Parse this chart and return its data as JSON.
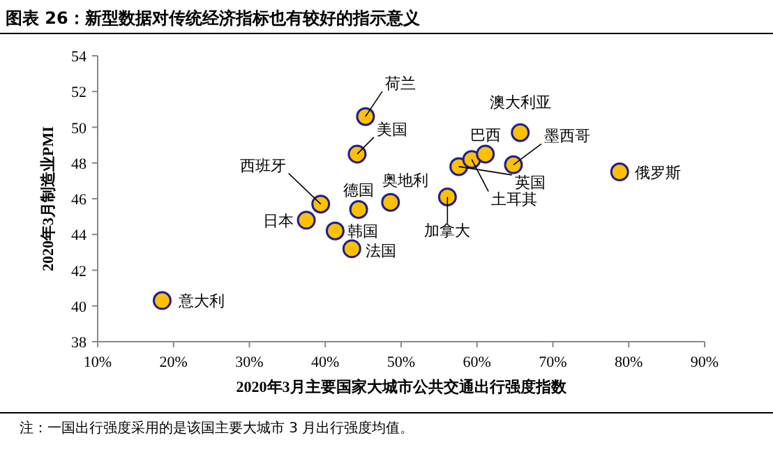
{
  "chart_data": {
    "type": "scatter",
    "title": "图表 26：新型数据对传统经济指标也有较好的指示意义",
    "xlabel": "2020年3月主要国家大城市公共交通出行强度指数",
    "ylabel": "2020年3月制造业PMI",
    "x": [
      18.5,
      45.3,
      44.2,
      39.4,
      37.5,
      41.3,
      44.4,
      43.5,
      48.6,
      56.1,
      57.6,
      59.3,
      61.1,
      64.8,
      65.7,
      78.8
    ],
    "values": [
      40.3,
      50.6,
      48.5,
      45.7,
      44.8,
      44.2,
      45.4,
      43.2,
      45.8,
      46.1,
      47.8,
      48.2,
      48.5,
      47.9,
      49.7,
      47.5
    ],
    "color": "#ffc000",
    "marker": "circle",
    "xlim": [
      10,
      90
    ],
    "xticks": [
      {
        "value": 10,
        "label": "10%"
      },
      {
        "value": 20,
        "label": "20%"
      },
      {
        "value": 30,
        "label": "30%"
      },
      {
        "value": 40,
        "label": "40%"
      },
      {
        "value": 50,
        "label": "50%"
      },
      {
        "value": 60,
        "label": "60%"
      },
      {
        "value": 70,
        "label": "70%"
      },
      {
        "value": 80,
        "label": "80%"
      },
      {
        "value": 90,
        "label": "90%"
      }
    ],
    "ylim": [
      38,
      54
    ],
    "yticks": [
      38,
      40,
      42,
      44,
      46,
      48,
      50,
      52,
      54
    ],
    "grid": false,
    "annotations": [
      {
        "text": "意大利",
        "x": 18.5,
        "y": 40.3
      },
      {
        "text": "荷兰",
        "x": 45.3,
        "y": 50.6
      },
      {
        "text": "美国",
        "x": 44.2,
        "y": 48.5
      },
      {
        "text": "西班牙",
        "x": 39.4,
        "y": 45.7
      },
      {
        "text": "日本",
        "x": 37.5,
        "y": 44.8
      },
      {
        "text": "韩国",
        "x": 41.3,
        "y": 44.2
      },
      {
        "text": "德国",
        "x": 44.4,
        "y": 45.4
      },
      {
        "text": "法国",
        "x": 43.5,
        "y": 43.2
      },
      {
        "text": "奥地利",
        "x": 48.6,
        "y": 45.8
      },
      {
        "text": "加拿大",
        "x": 56.1,
        "y": 46.1
      },
      {
        "text": "英国",
        "x": 57.6,
        "y": 47.8
      },
      {
        "text": "土耳其",
        "x": 59.3,
        "y": 48.2
      },
      {
        "text": "巴西",
        "x": 61.1,
        "y": 48.5
      },
      {
        "text": "墨西哥",
        "x": 64.8,
        "y": 47.9
      },
      {
        "text": "澳大利亚",
        "x": 65.7,
        "y": 49.7
      },
      {
        "text": "俄罗斯",
        "x": 78.8,
        "y": 47.5
      },
      "注：一国出行强度采用的是该国主要大城市 3 月出行强度均值。"
    ]
  }
}
